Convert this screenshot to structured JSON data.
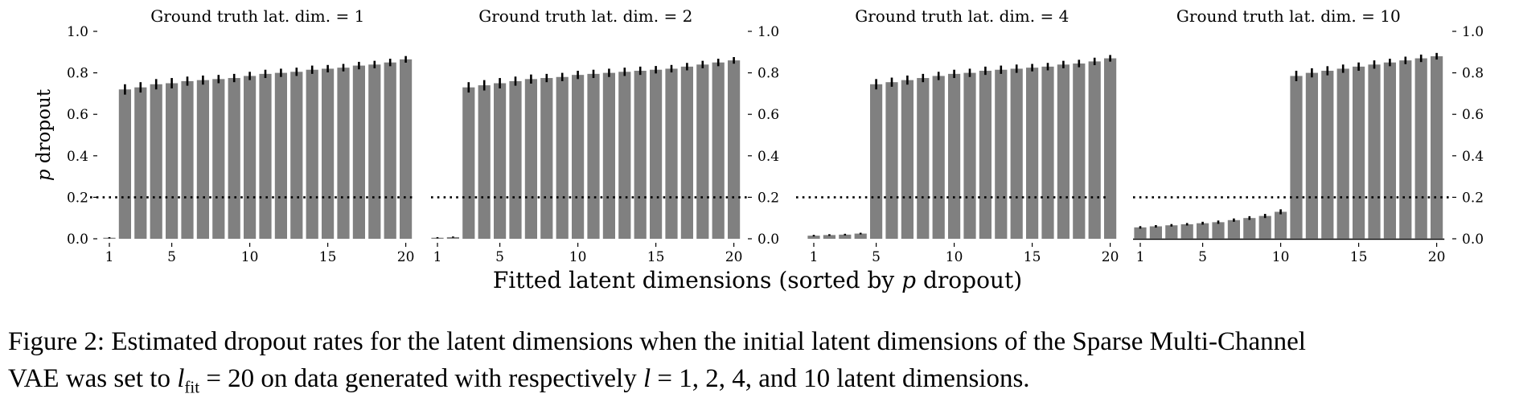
{
  "figure": {
    "shared_xlabel_prefix": "Fitted latent dimensions (sorted by ",
    "shared_xlabel_var": "p",
    "shared_xlabel_suffix": " dropout)",
    "ylabel_var": "p",
    "ylabel_suffix": " dropout"
  },
  "caption": {
    "line1": "Figure 2: Estimated dropout rates for the latent dimensions when the initial latent dimensions of the Sparse Multi-Channel",
    "line2_a": "VAE was set to ",
    "line2_l": "l",
    "line2_sub": "fit",
    "line2_b": " = 20 on data generated with respectively ",
    "line2_l2": "l",
    "line2_c": " = 1, 2, 4, and 10 latent dimensions."
  },
  "chart_data": [
    {
      "type": "bar",
      "title": "Ground truth lat. dim. = 1",
      "categories": [
        1,
        2,
        3,
        4,
        5,
        6,
        7,
        8,
        9,
        10,
        11,
        12,
        13,
        14,
        15,
        16,
        17,
        18,
        19,
        20
      ],
      "values": [
        0.005,
        0.72,
        0.73,
        0.745,
        0.75,
        0.76,
        0.765,
        0.77,
        0.775,
        0.785,
        0.795,
        0.8,
        0.805,
        0.815,
        0.82,
        0.825,
        0.835,
        0.84,
        0.85,
        0.865
      ],
      "error": [
        0.003,
        0.025,
        0.025,
        0.025,
        0.025,
        0.022,
        0.022,
        0.02,
        0.02,
        0.02,
        0.02,
        0.02,
        0.02,
        0.02,
        0.018,
        0.018,
        0.018,
        0.018,
        0.018,
        0.016
      ],
      "xticks": [
        1,
        5,
        10,
        15,
        20
      ],
      "yticks": [
        0.0,
        0.2,
        0.4,
        0.6,
        0.8,
        1.0
      ],
      "ytick_labels": [
        "0.0",
        "0.2",
        "0.4",
        "0.6",
        "0.8",
        "1.0"
      ],
      "ylim": [
        0,
        1.0
      ],
      "threshold": 0.2,
      "yaxis": "left",
      "ylabel": "p dropout",
      "bar_color": "#808080",
      "error_color": "#000000"
    },
    {
      "type": "bar",
      "title": "Ground truth lat. dim. = 2",
      "categories": [
        1,
        2,
        3,
        4,
        5,
        6,
        7,
        8,
        9,
        10,
        11,
        12,
        13,
        14,
        15,
        16,
        17,
        18,
        19,
        20
      ],
      "values": [
        0.005,
        0.008,
        0.73,
        0.74,
        0.75,
        0.76,
        0.77,
        0.775,
        0.78,
        0.79,
        0.795,
        0.8,
        0.805,
        0.81,
        0.815,
        0.82,
        0.83,
        0.84,
        0.85,
        0.86
      ],
      "error": [
        0.003,
        0.003,
        0.025,
        0.025,
        0.025,
        0.022,
        0.022,
        0.02,
        0.02,
        0.02,
        0.02,
        0.02,
        0.02,
        0.02,
        0.018,
        0.018,
        0.018,
        0.018,
        0.018,
        0.016
      ],
      "xticks": [
        1,
        5,
        10,
        15,
        20
      ],
      "yticks": [
        0.0,
        0.2,
        0.4,
        0.6,
        0.8,
        1.0
      ],
      "ytick_labels": [
        "0.0",
        "0.2",
        "0.4",
        "0.6",
        "0.8",
        "1.0"
      ],
      "ylim": [
        0,
        1.0
      ],
      "threshold": 0.2,
      "yaxis": "right",
      "bar_color": "#808080",
      "error_color": "#000000"
    },
    {
      "type": "bar",
      "title": "Ground truth lat. dim. = 4",
      "categories": [
        1,
        2,
        3,
        4,
        5,
        6,
        7,
        8,
        9,
        10,
        11,
        12,
        13,
        14,
        15,
        16,
        17,
        18,
        19,
        20
      ],
      "values": [
        0.015,
        0.018,
        0.02,
        0.025,
        0.745,
        0.755,
        0.765,
        0.775,
        0.785,
        0.795,
        0.8,
        0.81,
        0.815,
        0.82,
        0.825,
        0.83,
        0.84,
        0.845,
        0.855,
        0.87
      ],
      "error": [
        0.004,
        0.004,
        0.004,
        0.004,
        0.025,
        0.022,
        0.022,
        0.02,
        0.02,
        0.02,
        0.02,
        0.02,
        0.02,
        0.02,
        0.018,
        0.018,
        0.018,
        0.018,
        0.018,
        0.016
      ],
      "xticks": [
        1,
        5,
        10,
        15,
        20
      ],
      "yticks": [
        0.0,
        0.2,
        0.4,
        0.6,
        0.8,
        1.0
      ],
      "ytick_labels": [
        "0.0",
        "0.2",
        "0.4",
        "0.6",
        "0.8",
        "1.0"
      ],
      "ylim": [
        0,
        1.0
      ],
      "threshold": 0.2,
      "yaxis": "none",
      "bar_color": "#808080",
      "error_color": "#000000"
    },
    {
      "type": "bar",
      "title": "Ground truth lat. dim. = 10",
      "categories": [
        1,
        2,
        3,
        4,
        5,
        6,
        7,
        8,
        9,
        10,
        11,
        12,
        13,
        14,
        15,
        16,
        17,
        18,
        19,
        20
      ],
      "values": [
        0.055,
        0.06,
        0.065,
        0.07,
        0.075,
        0.08,
        0.09,
        0.1,
        0.11,
        0.13,
        0.785,
        0.8,
        0.81,
        0.82,
        0.83,
        0.84,
        0.85,
        0.86,
        0.87,
        0.88
      ],
      "error": [
        0.006,
        0.006,
        0.006,
        0.006,
        0.007,
        0.008,
        0.008,
        0.009,
        0.01,
        0.012,
        0.025,
        0.022,
        0.022,
        0.02,
        0.02,
        0.02,
        0.018,
        0.018,
        0.018,
        0.016
      ],
      "xticks": [
        1,
        5,
        10,
        15,
        20
      ],
      "yticks": [
        0.0,
        0.2,
        0.4,
        0.6,
        0.8,
        1.0
      ],
      "ytick_labels": [
        "0.0",
        "0.2",
        "0.4",
        "0.6",
        "0.8",
        "1.0"
      ],
      "ylim": [
        0,
        1.0
      ],
      "threshold": 0.2,
      "yaxis": "right",
      "bar_color": "#808080",
      "error_color": "#000000"
    }
  ]
}
